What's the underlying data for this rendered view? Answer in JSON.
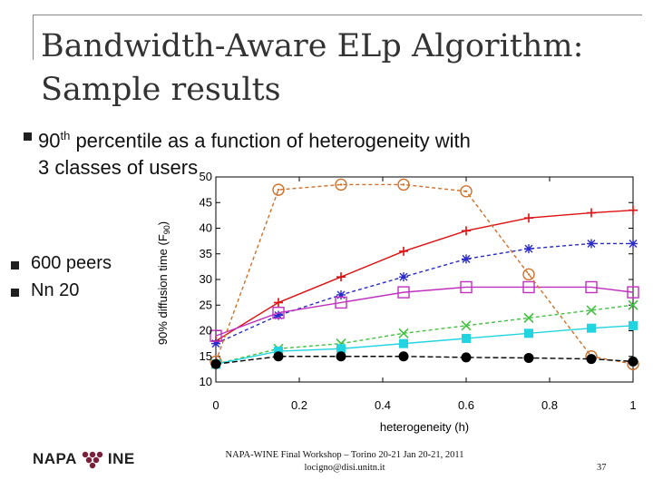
{
  "slide": {
    "title_line1": "Bandwidth-Aware ELp Algorithm:",
    "title_line2": "Sample results",
    "bullet_main_pre": "90",
    "bullet_main_sup": "th",
    "bullet_main_post": " percentile as a function of heterogeneity with",
    "bullet_main_line2": "3 classes of users",
    "bullets": [
      "600 peers",
      "Nn 20"
    ],
    "footer_logo_left": "NAPA",
    "footer_logo_right": "INE",
    "footer_line1": "NAPA-WINE Final Workshop – Torino 20-21 Jan 20-21, 2011",
    "footer_line2": "locigno@disi.unitn.it",
    "page_number": "37"
  },
  "chart_data": {
    "type": "line",
    "xlabel": "heterogeneity (h)",
    "ylabel": "90% diffusion time (F",
    "ylabel_sub": "90",
    "ylabel_close": ")",
    "xlim": [
      0,
      1
    ],
    "ylim": [
      10,
      50
    ],
    "x_ticks": [
      0,
      0.2,
      0.4,
      0.6,
      0.8,
      1
    ],
    "x_tick_labels": [
      "0",
      "0.2",
      "0.4",
      "0.6",
      "0.8",
      "1"
    ],
    "y_ticks": [
      10,
      15,
      20,
      25,
      30,
      35,
      40,
      45,
      50
    ],
    "y_tick_labels": [
      "10",
      "15",
      "20",
      "25",
      "30",
      "35",
      "40",
      "45",
      "50"
    ],
    "grid": false,
    "legend": "none",
    "series": [
      {
        "color": "#dd1111",
        "dash": "",
        "marker": "plus",
        "x": [
          0,
          0.15,
          0.3,
          0.45,
          0.6,
          0.75,
          0.9,
          1
        ],
        "y": [
          18,
          25.5,
          30.5,
          35.5,
          39.5,
          42,
          43,
          43.5
        ]
      },
      {
        "color": "#2a2ac8",
        "dash": "4,3",
        "marker": "star",
        "x": [
          0,
          0.15,
          0.3,
          0.45,
          0.6,
          0.75,
          0.9,
          1
        ],
        "y": [
          17.5,
          23,
          27,
          30.5,
          34,
          36,
          37,
          37
        ]
      },
      {
        "color": "#c030c0",
        "dash": "",
        "marker": "square-open",
        "x": [
          0,
          0.15,
          0.3,
          0.45,
          0.6,
          0.75,
          0.9,
          1
        ],
        "y": [
          19,
          23.5,
          25.5,
          27.5,
          28.5,
          28.5,
          28.5,
          27.5
        ]
      },
      {
        "color": "#d0702a",
        "dash": "4,3",
        "marker": "circle-open",
        "x": [
          0,
          0.15,
          0.3,
          0.45,
          0.6,
          0.75,
          0.9,
          1
        ],
        "y": [
          14,
          47.5,
          48.5,
          48.5,
          47.2,
          31,
          15,
          13.5
        ]
      },
      {
        "color": "#44c044",
        "dash": "4,3",
        "marker": "x",
        "x": [
          0,
          0.15,
          0.3,
          0.45,
          0.6,
          0.75,
          0.9,
          1
        ],
        "y": [
          13.5,
          16.5,
          17.5,
          19.5,
          21,
          22.5,
          24,
          25
        ]
      },
      {
        "color": "#22d4e0",
        "dash": "",
        "marker": "square-filled",
        "x": [
          0,
          0.15,
          0.3,
          0.45,
          0.6,
          0.75,
          0.9,
          1
        ],
        "y": [
          13.5,
          16,
          16.5,
          17.5,
          18.5,
          19.5,
          20.5,
          21
        ]
      },
      {
        "color": "#000000",
        "dash": "6,3",
        "marker": "circle-filled",
        "x": [
          0,
          0.15,
          0.3,
          0.45,
          0.6,
          0.75,
          0.9,
          1
        ],
        "y": [
          13.5,
          15,
          15,
          15,
          14.8,
          14.7,
          14.5,
          14
        ]
      }
    ]
  }
}
